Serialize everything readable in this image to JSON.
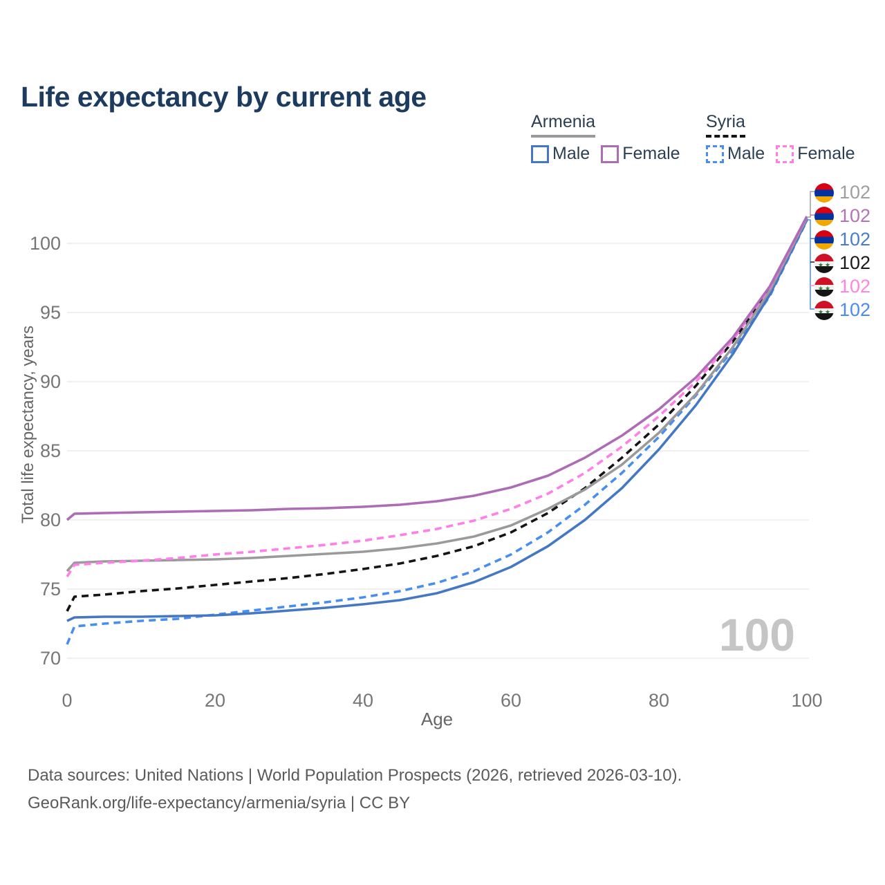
{
  "title": "Life expectancy by current age",
  "colors": {
    "title": "#1d3a5f",
    "axis_text": "#767676",
    "axis_label": "#666666",
    "grid": "#ececec",
    "footer_text": "#5a5a5a",
    "watermark": "#c5c5c5",
    "legend_text": "#2a3f54"
  },
  "legend": {
    "groups": [
      {
        "country": "Armenia",
        "underline_style": "solid",
        "underline_color": "#9a9a9a",
        "items": [
          {
            "label": "Male",
            "color": "#4477c4",
            "dashed": false
          },
          {
            "label": "Female",
            "color": "#ad6cb5",
            "dashed": false
          }
        ]
      },
      {
        "country": "Syria",
        "underline_style": "dashed",
        "underline_color": "#141414",
        "items": [
          {
            "label": "Male",
            "color": "#478ef0",
            "dashed": true
          },
          {
            "label": "Female",
            "color": "#ff7ee8",
            "dashed": true
          }
        ]
      }
    ]
  },
  "chart_data": {
    "type": "line",
    "title": "Life expectancy by current age",
    "xlabel": "Age",
    "ylabel": "Total life expectancy, years",
    "grid": true,
    "legend_position": "top-right",
    "xlim": [
      0,
      100
    ],
    "ylim": [
      69,
      103
    ],
    "xticks": [
      0,
      20,
      40,
      60,
      80,
      100
    ],
    "yticks": [
      70,
      75,
      80,
      85,
      90,
      95,
      100
    ],
    "watermark": "100",
    "x": [
      0,
      1,
      5,
      10,
      15,
      20,
      25,
      30,
      35,
      40,
      45,
      50,
      55,
      60,
      65,
      70,
      75,
      80,
      85,
      90,
      95,
      100
    ],
    "series": [
      {
        "name": "Armenia",
        "sex": "both",
        "color": "#9a9a9a",
        "dashed": false,
        "values": [
          76.3,
          76.9,
          77.0,
          77.05,
          77.1,
          77.15,
          77.25,
          77.4,
          77.55,
          77.7,
          77.95,
          78.3,
          78.8,
          79.6,
          80.8,
          82.2,
          84.0,
          86.3,
          89.1,
          92.5,
          96.6,
          101.85
        ]
      },
      {
        "name": "Armenia Female",
        "sex": "female",
        "color": "#ad6cb5",
        "dashed": false,
        "values": [
          80.0,
          80.45,
          80.5,
          80.55,
          80.6,
          80.65,
          80.7,
          80.8,
          80.85,
          80.95,
          81.1,
          81.35,
          81.75,
          82.35,
          83.2,
          84.5,
          86.1,
          88.0,
          90.3,
          93.2,
          96.9,
          101.95
        ]
      },
      {
        "name": "Armenia Male",
        "sex": "male",
        "color": "#4477c4",
        "dashed": false,
        "values": [
          72.7,
          72.95,
          73.0,
          73.0,
          73.05,
          73.1,
          73.25,
          73.45,
          73.65,
          73.9,
          74.2,
          74.7,
          75.5,
          76.6,
          78.1,
          80.0,
          82.3,
          85.1,
          88.3,
          92.0,
          96.3,
          101.7
        ]
      },
      {
        "name": "Syria",
        "sex": "both",
        "color": "#141414",
        "dashed": true,
        "values": [
          73.4,
          74.45,
          74.6,
          74.85,
          75.05,
          75.3,
          75.55,
          75.8,
          76.1,
          76.45,
          76.85,
          77.4,
          78.1,
          79.1,
          80.5,
          82.3,
          84.5,
          86.9,
          89.7,
          92.9,
          96.7,
          101.8
        ]
      },
      {
        "name": "Syria Female",
        "sex": "female",
        "color": "#ff7ee8",
        "dashed": true,
        "values": [
          75.9,
          76.75,
          76.9,
          77.05,
          77.25,
          77.5,
          77.7,
          77.95,
          78.2,
          78.5,
          78.9,
          79.35,
          79.95,
          80.8,
          81.9,
          83.4,
          85.3,
          87.5,
          90.0,
          93.0,
          96.8,
          101.9
        ]
      },
      {
        "name": "Syria Male",
        "sex": "male",
        "color": "#478ef0",
        "dashed": true,
        "values": [
          71.0,
          72.3,
          72.5,
          72.7,
          72.85,
          73.15,
          73.45,
          73.75,
          74.05,
          74.4,
          74.85,
          75.45,
          76.3,
          77.5,
          79.1,
          81.1,
          83.4,
          86.0,
          89.0,
          92.3,
          96.2,
          101.65
        ]
      }
    ],
    "end_labels": [
      {
        "flag": "armenia",
        "series": "Armenia",
        "value": "102",
        "color": "#9e9e9e"
      },
      {
        "flag": "armenia",
        "series": "Armenia Female",
        "value": "102",
        "color": "#b473b4"
      },
      {
        "flag": "armenia",
        "series": "Armenia Male",
        "value": "102",
        "color": "#4a7cc7"
      },
      {
        "flag": "syria",
        "series": "Syria",
        "value": "102",
        "color": "#1a1a1a"
      },
      {
        "flag": "syria",
        "series": "Syria Female",
        "value": "102",
        "color": "#ff85e0"
      },
      {
        "flag": "syria",
        "series": "Syria Male",
        "value": "102",
        "color": "#4b8bf0"
      }
    ]
  },
  "flags": {
    "armenia_stripes": [
      "#d90012",
      "#0033a0",
      "#f2a800"
    ],
    "syria_stripes": [
      "#ce1126",
      "#f0f0f0",
      "#151515"
    ],
    "syria_star_color": "#2e7d32",
    "syria_star_glyph": "★"
  },
  "footer": {
    "line1": "Data sources: United Nations | World Population Prospects (2026, retrieved 2026-03-10).",
    "line2": "GeoRank.org/life-expectancy/armenia/syria | CC BY"
  }
}
